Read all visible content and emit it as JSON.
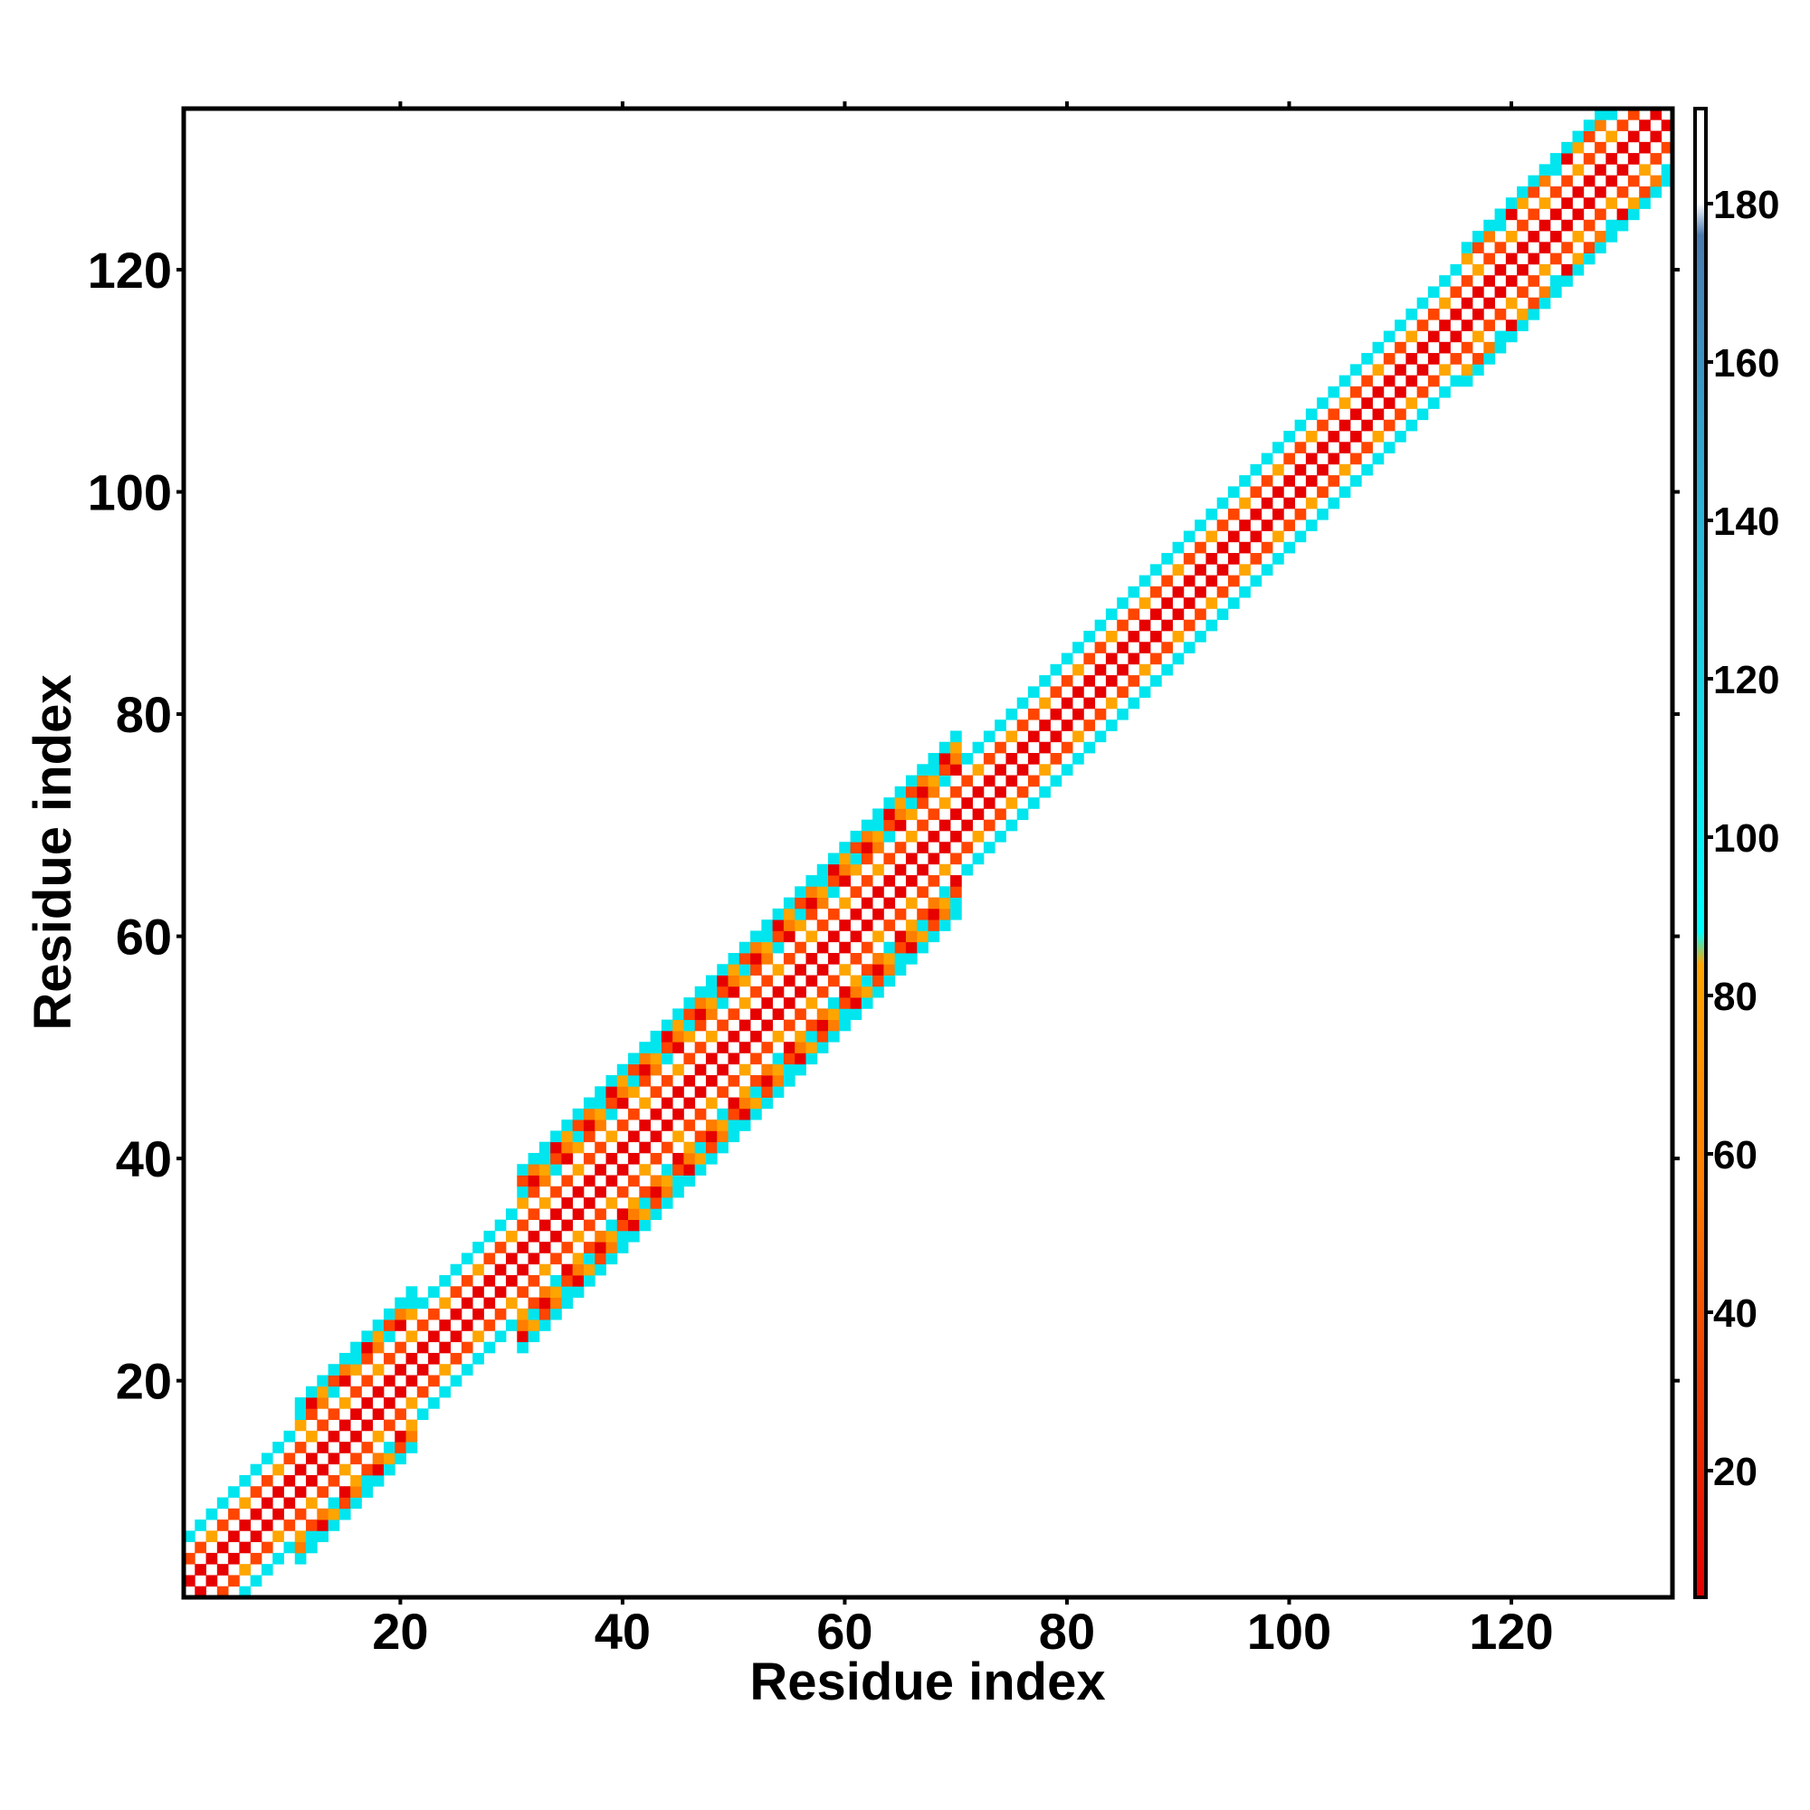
{
  "chart_data": {
    "type": "heatmap",
    "title": "",
    "xlabel": "Residue index",
    "ylabel": "Residue index",
    "xlim": [
      1,
      134
    ],
    "ylim": [
      1,
      134
    ],
    "x_ticks": [
      20,
      40,
      60,
      80,
      100,
      120
    ],
    "y_ticks": [
      20,
      40,
      60,
      80,
      100,
      120
    ],
    "colorbar": {
      "range": [
        4,
        192
      ],
      "ticks": [
        20,
        40,
        60,
        80,
        100,
        120,
        140,
        160,
        180
      ],
      "stops": [
        {
          "value": 4,
          "color": "#e60000"
        },
        {
          "value": 32,
          "color": "#f03c00"
        },
        {
          "value": 56,
          "color": "#ff7d00"
        },
        {
          "value": 84,
          "color": "#ffa500"
        },
        {
          "value": 88,
          "color": "#00ffff"
        },
        {
          "value": 120,
          "color": "#1ad2e6"
        },
        {
          "value": 140,
          "color": "#2ab4d8"
        },
        {
          "value": 176,
          "color": "#4a7ab0"
        },
        {
          "value": 180,
          "color": "#ffffff"
        },
        {
          "value": 192,
          "color": "#ffffff"
        }
      ]
    },
    "band": {
      "description_free": true,
      "half_width_segments": [
        {
          "from": 1,
          "to": 10,
          "width": 5
        },
        {
          "from": 10,
          "to": 21,
          "width": 7
        },
        {
          "from": 21,
          "to": 30,
          "width": 5
        },
        {
          "from": 30,
          "to": 70,
          "width": 8
        },
        {
          "from": 70,
          "to": 115,
          "width": 5
        },
        {
          "from": 115,
          "to": 134,
          "width": 6
        }
      ],
      "pattern_colors": [
        "#e60000",
        "#ff7d00",
        "#ffa500",
        "#00e5ee",
        "#ff4500"
      ]
    }
  }
}
